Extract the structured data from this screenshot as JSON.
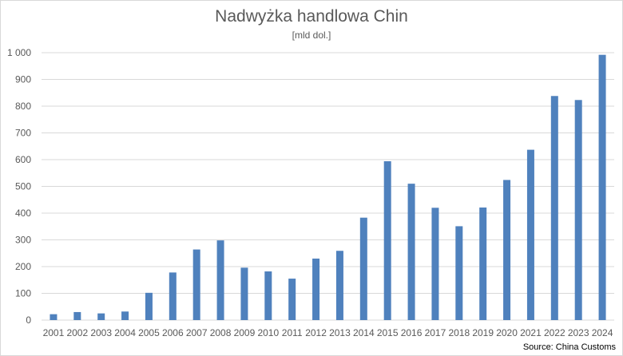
{
  "chart_data": {
    "type": "bar",
    "title": "Nadwyżka handlowa Chin",
    "subtitle": "[mld dol.]",
    "source": "Source: China Customs",
    "categories": [
      "2001",
      "2002",
      "2003",
      "2004",
      "2005",
      "2006",
      "2007",
      "2008",
      "2009",
      "2010",
      "2011",
      "2012",
      "2013",
      "2014",
      "2015",
      "2016",
      "2017",
      "2018",
      "2019",
      "2020",
      "2021",
      "2022",
      "2023",
      "2024"
    ],
    "values": [
      22,
      30,
      25,
      32,
      102,
      178,
      264,
      298,
      196,
      182,
      155,
      230,
      259,
      383,
      594,
      510,
      420,
      351,
      421,
      524,
      637,
      838,
      823,
      992
    ],
    "ylim": [
      0,
      1000
    ],
    "yticks": [
      "0",
      "100",
      "200",
      "300",
      "400",
      "500",
      "600",
      "700",
      "800",
      "900",
      "1 000"
    ],
    "grid": true,
    "bar_color": "#4f81bd",
    "grid_color": "#d9d9d9"
  }
}
